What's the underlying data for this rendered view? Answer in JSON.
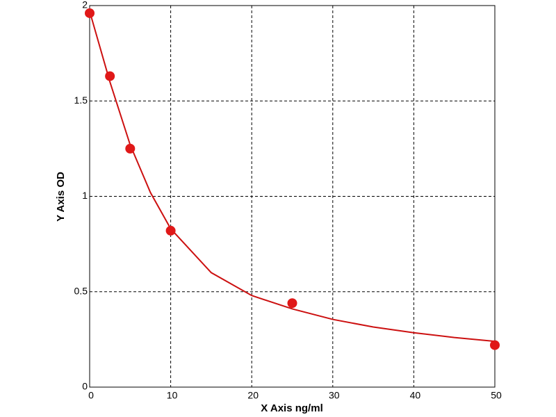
{
  "chart_data": {
    "type": "scatter",
    "xlabel": "X Axis ng/ml",
    "ylabel": "Y Axis OD",
    "xlim": [
      0,
      50
    ],
    "ylim": [
      0,
      2
    ],
    "xticks": [
      0,
      10,
      20,
      30,
      40,
      50
    ],
    "yticks": [
      0,
      0.5,
      1,
      1.5,
      2
    ],
    "grid": true,
    "series": [
      {
        "style": "line",
        "color": "#cc1010",
        "x": [
          0,
          2.5,
          5,
          7.5,
          10,
          15,
          20,
          25,
          30,
          35,
          40,
          45,
          50
        ],
        "values": [
          1.97,
          1.6,
          1.27,
          1.02,
          0.83,
          0.6,
          0.48,
          0.41,
          0.355,
          0.315,
          0.285,
          0.26,
          0.24
        ]
      },
      {
        "style": "markers",
        "color": "#e01818",
        "x": [
          0,
          2.5,
          5,
          10,
          25,
          50
        ],
        "values": [
          1.96,
          1.63,
          1.25,
          0.82,
          0.44,
          0.22
        ]
      }
    ]
  }
}
